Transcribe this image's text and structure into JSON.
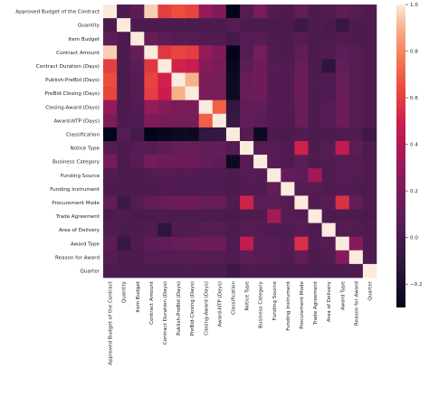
{
  "chart_data": {
    "type": "heatmap",
    "title": "",
    "xlabel": "",
    "ylabel": "",
    "labels": [
      "Approved Budget of the Contract",
      "Quantity",
      "Item Budget",
      "Contract Amount",
      "Contract Duration (Days)",
      "Publish-PreBid (Days)",
      "PreBid-Closing (Days)",
      "Closing-Award (Days)",
      "Award-NTP (Days)",
      "Classification",
      "Notice Type",
      "Business Category",
      "Funding Source",
      "Funding Instrument",
      "Procurement Mode",
      "Trade Agreement",
      "Area of Delivery",
      "Award Type",
      "Reason for Award",
      "Quarter"
    ],
    "matrix": [
      [
        1.0,
        0.02,
        0.08,
        0.95,
        0.6,
        0.65,
        0.62,
        0.3,
        0.22,
        -0.3,
        0.05,
        0.18,
        0.04,
        0.02,
        0.1,
        0.01,
        0.03,
        0.08,
        0.05,
        0.02
      ],
      [
        0.02,
        1.0,
        0.02,
        0.02,
        0.02,
        0.01,
        0.01,
        0.02,
        0.02,
        0.05,
        0.02,
        0.01,
        0.01,
        0.01,
        -0.05,
        0.02,
        0.01,
        -0.08,
        0.02,
        0.02
      ],
      [
        0.08,
        0.02,
        1.0,
        0.12,
        0.08,
        0.05,
        0.05,
        0.04,
        0.03,
        -0.02,
        0.05,
        0.06,
        0.02,
        0.02,
        0.05,
        0.01,
        0.02,
        0.03,
        0.02,
        0.02
      ],
      [
        0.95,
        0.02,
        0.12,
        1.0,
        0.58,
        0.62,
        0.6,
        0.3,
        0.22,
        -0.3,
        0.05,
        0.18,
        0.04,
        0.02,
        0.1,
        0.01,
        0.03,
        0.08,
        0.05,
        0.02
      ],
      [
        0.6,
        0.02,
        0.08,
        0.58,
        1.0,
        0.5,
        0.48,
        0.25,
        0.2,
        -0.28,
        0.08,
        0.15,
        0.05,
        0.03,
        0.12,
        0.02,
        -0.12,
        0.1,
        0.05,
        0.02
      ],
      [
        0.65,
        0.01,
        0.05,
        0.62,
        0.5,
        1.0,
        0.9,
        0.2,
        0.18,
        -0.25,
        0.12,
        0.15,
        0.04,
        0.03,
        0.15,
        0.02,
        0.03,
        0.12,
        0.05,
        0.02
      ],
      [
        0.62,
        0.01,
        0.05,
        0.6,
        0.48,
        0.9,
        1.0,
        0.2,
        0.18,
        -0.25,
        0.12,
        0.15,
        0.04,
        0.03,
        0.15,
        0.02,
        0.03,
        0.12,
        0.05,
        0.02
      ],
      [
        0.3,
        0.02,
        0.04,
        0.3,
        0.25,
        0.2,
        0.2,
        1.0,
        0.7,
        -0.1,
        0.1,
        0.1,
        0.04,
        0.03,
        0.12,
        0.02,
        0.05,
        0.15,
        0.05,
        0.02
      ],
      [
        0.22,
        0.02,
        0.03,
        0.22,
        0.2,
        0.18,
        0.18,
        0.7,
        1.0,
        -0.08,
        0.1,
        0.08,
        0.04,
        0.03,
        0.12,
        0.02,
        0.05,
        0.15,
        0.05,
        0.02
      ],
      [
        -0.3,
        0.05,
        -0.02,
        -0.3,
        -0.28,
        -0.25,
        -0.25,
        -0.1,
        -0.08,
        1.0,
        0.05,
        -0.25,
        0.02,
        0.01,
        0.04,
        0.01,
        0.02,
        0.03,
        0.03,
        -0.05
      ],
      [
        0.05,
        0.02,
        0.05,
        0.05,
        0.08,
        0.12,
        0.12,
        0.1,
        0.1,
        0.05,
        1.0,
        0.05,
        0.05,
        0.03,
        0.5,
        0.02,
        0.05,
        0.45,
        0.08,
        0.02
      ],
      [
        0.18,
        0.01,
        0.06,
        0.18,
        0.15,
        0.15,
        0.15,
        0.1,
        0.08,
        -0.25,
        0.05,
        1.0,
        0.05,
        0.03,
        0.08,
        0.02,
        0.04,
        0.06,
        0.05,
        0.02
      ],
      [
        0.04,
        0.01,
        0.02,
        0.04,
        0.05,
        0.04,
        0.04,
        0.04,
        0.04,
        0.02,
        0.05,
        0.05,
        1.0,
        0.1,
        0.08,
        0.35,
        0.03,
        0.06,
        0.05,
        0.02
      ],
      [
        0.02,
        0.01,
        0.02,
        0.02,
        0.03,
        0.03,
        0.03,
        0.03,
        0.03,
        0.01,
        0.03,
        0.03,
        0.1,
        1.0,
        0.05,
        0.05,
        0.03,
        0.04,
        0.03,
        0.02
      ],
      [
        0.1,
        -0.05,
        0.05,
        0.1,
        0.12,
        0.15,
        0.15,
        0.12,
        0.12,
        0.04,
        0.5,
        0.08,
        0.08,
        0.05,
        1.0,
        0.04,
        0.06,
        0.55,
        0.1,
        0.02
      ],
      [
        0.01,
        0.02,
        0.01,
        0.01,
        0.02,
        0.02,
        0.02,
        0.02,
        0.02,
        0.01,
        0.02,
        0.02,
        0.35,
        0.05,
        0.04,
        1.0,
        0.02,
        0.03,
        0.02,
        0.01
      ],
      [
        0.03,
        0.01,
        0.02,
        0.03,
        -0.12,
        0.03,
        0.03,
        0.05,
        0.05,
        0.02,
        0.05,
        0.04,
        0.03,
        0.03,
        0.06,
        0.02,
        1.0,
        0.05,
        0.04,
        0.02
      ],
      [
        0.08,
        -0.08,
        0.03,
        0.08,
        0.1,
        0.12,
        0.12,
        0.15,
        0.15,
        0.03,
        0.45,
        0.06,
        0.06,
        0.04,
        0.55,
        0.03,
        0.05,
        1.0,
        0.25,
        0.02
      ],
      [
        0.05,
        0.02,
        0.02,
        0.05,
        0.05,
        0.05,
        0.05,
        0.05,
        0.05,
        0.03,
        0.08,
        0.05,
        0.05,
        0.03,
        0.1,
        0.02,
        0.04,
        0.25,
        1.0,
        0.02
      ],
      [
        0.02,
        0.02,
        0.02,
        0.02,
        0.02,
        0.02,
        0.02,
        0.02,
        0.02,
        -0.05,
        0.02,
        0.02,
        0.02,
        0.02,
        0.02,
        0.01,
        0.02,
        0.02,
        0.02,
        1.0
      ]
    ],
    "colorbar": {
      "vmin": -0.3,
      "vmax": 1.0,
      "ticks": [
        1.0,
        0.8,
        0.6,
        0.4,
        0.2,
        0.0,
        -0.2
      ],
      "tick_labels": [
        "1.0",
        "0.8",
        "0.6",
        "0.4",
        "0.2",
        "0.0",
        "−0.2"
      ],
      "colormap": "rocket"
    },
    "grid": false
  }
}
